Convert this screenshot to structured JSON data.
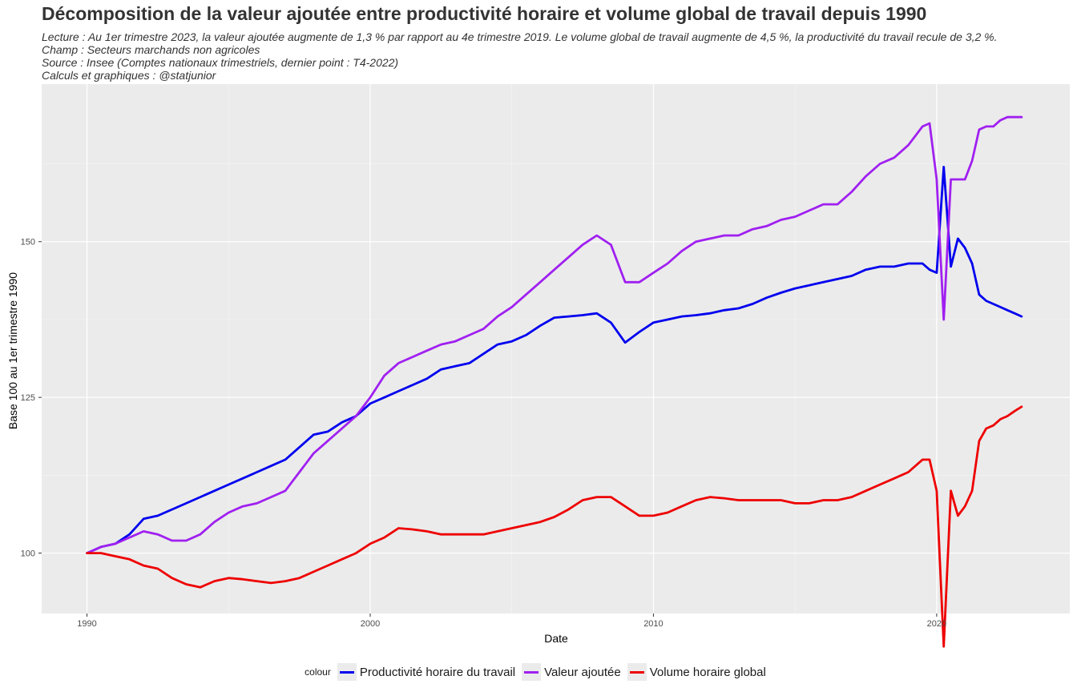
{
  "title": "Décomposition de la valeur ajoutée entre productivité horaire et volume global de travail depuis 1990",
  "subtitle_lines": [
    "Lecture : Au 1er trimestre 2023, la valeur ajoutée augmente de 1,3 % par rapport au 4e trimestre 2019. Le volume global de travail augmente de 4,5 %, la productivité du travail recule de 3,2 %.",
    "Champ : Secteurs marchands non agricoles",
    "Source : Insee (Comptes nationaux trimestriels, dernier point : T4-2022)",
    "Calculs et graphiques : @statjunior"
  ],
  "legend": {
    "title": "colour"
  },
  "colors": {
    "panel": "#ebebeb",
    "grid_major": "#ffffff",
    "grid_minor": "#f5f5f5"
  },
  "chart_data": {
    "type": "line",
    "xlabel": "Date",
    "ylabel": "Base 100 au 1er trimestre 1990",
    "xlim": [
      1988.4,
      2024.7
    ],
    "ylim": [
      90.3,
      175.3
    ],
    "x_ticks": [
      1990,
      2000,
      2010,
      2020
    ],
    "y_ticks": [
      100,
      125,
      150
    ],
    "grid": true,
    "legend_position": "bottom",
    "series": [
      {
        "name": "Productivité horaire du travail",
        "color": "#0000ee",
        "points": [
          [
            1990,
            100
          ],
          [
            1990.5,
            101
          ],
          [
            1991,
            101.5
          ],
          [
            1991.5,
            103
          ],
          [
            1992,
            105.5
          ],
          [
            1992.5,
            106
          ],
          [
            1993,
            107
          ],
          [
            1993.5,
            108
          ],
          [
            1994,
            109
          ],
          [
            1994.5,
            110
          ],
          [
            1995,
            111
          ],
          [
            1995.5,
            112
          ],
          [
            1996,
            113
          ],
          [
            1996.5,
            114
          ],
          [
            1997,
            115
          ],
          [
            1997.5,
            117
          ],
          [
            1998,
            119
          ],
          [
            1998.5,
            119.5
          ],
          [
            1999,
            121
          ],
          [
            1999.5,
            122
          ],
          [
            2000,
            124
          ],
          [
            2000.5,
            125
          ],
          [
            2001,
            126
          ],
          [
            2001.5,
            127
          ],
          [
            2002,
            128
          ],
          [
            2002.5,
            129.5
          ],
          [
            2003,
            130
          ],
          [
            2003.5,
            130.5
          ],
          [
            2004,
            132
          ],
          [
            2004.5,
            133.5
          ],
          [
            2005,
            134
          ],
          [
            2005.5,
            135
          ],
          [
            2006,
            136.5
          ],
          [
            2006.5,
            137.8
          ],
          [
            2007,
            138
          ],
          [
            2007.5,
            138.2
          ],
          [
            2008,
            138.5
          ],
          [
            2008.5,
            137
          ],
          [
            2009,
            133.8
          ],
          [
            2009.5,
            135.5
          ],
          [
            2010,
            137
          ],
          [
            2010.5,
            137.5
          ],
          [
            2011,
            138
          ],
          [
            2011.5,
            138.2
          ],
          [
            2012,
            138.5
          ],
          [
            2012.5,
            139
          ],
          [
            2013,
            139.3
          ],
          [
            2013.5,
            140
          ],
          [
            2014,
            141
          ],
          [
            2014.5,
            141.8
          ],
          [
            2015,
            142.5
          ],
          [
            2015.5,
            143
          ],
          [
            2016,
            143.5
          ],
          [
            2016.5,
            144
          ],
          [
            2017,
            144.5
          ],
          [
            2017.5,
            145.5
          ],
          [
            2018,
            146
          ],
          [
            2018.5,
            146
          ],
          [
            2019,
            146.5
          ],
          [
            2019.5,
            146.5
          ],
          [
            2019.75,
            145.5
          ],
          [
            2020,
            145
          ],
          [
            2020.25,
            162
          ],
          [
            2020.5,
            146
          ],
          [
            2020.75,
            150.5
          ],
          [
            2021,
            149
          ],
          [
            2021.25,
            146.5
          ],
          [
            2021.5,
            141.5
          ],
          [
            2021.75,
            140.5
          ],
          [
            2022,
            140
          ],
          [
            2022.25,
            139.5
          ],
          [
            2022.5,
            139
          ],
          [
            2022.75,
            138.5
          ],
          [
            2023,
            138
          ]
        ]
      },
      {
        "name": "Valeur ajoutée",
        "color": "#a020f0",
        "points": [
          [
            1990,
            100
          ],
          [
            1990.5,
            101
          ],
          [
            1991,
            101.5
          ],
          [
            1991.5,
            102.5
          ],
          [
            1992,
            103.5
          ],
          [
            1992.5,
            103
          ],
          [
            1993,
            102
          ],
          [
            1993.5,
            102
          ],
          [
            1994,
            103
          ],
          [
            1994.5,
            105
          ],
          [
            1995,
            106.5
          ],
          [
            1995.5,
            107.5
          ],
          [
            1996,
            108
          ],
          [
            1996.5,
            109
          ],
          [
            1997,
            110
          ],
          [
            1997.5,
            113
          ],
          [
            1998,
            116
          ],
          [
            1998.5,
            118
          ],
          [
            1999,
            120
          ],
          [
            1999.5,
            122
          ],
          [
            2000,
            125
          ],
          [
            2000.5,
            128.5
          ],
          [
            2001,
            130.5
          ],
          [
            2001.5,
            131.5
          ],
          [
            2002,
            132.5
          ],
          [
            2002.5,
            133.5
          ],
          [
            2003,
            134
          ],
          [
            2003.5,
            135
          ],
          [
            2004,
            136
          ],
          [
            2004.5,
            138
          ],
          [
            2005,
            139.5
          ],
          [
            2005.5,
            141.5
          ],
          [
            2006,
            143.5
          ],
          [
            2006.5,
            145.5
          ],
          [
            2007,
            147.5
          ],
          [
            2007.5,
            149.5
          ],
          [
            2008,
            151
          ],
          [
            2008.5,
            149.5
          ],
          [
            2009,
            143.5
          ],
          [
            2009.5,
            143.5
          ],
          [
            2010,
            145
          ],
          [
            2010.5,
            146.5
          ],
          [
            2011,
            148.5
          ],
          [
            2011.5,
            150
          ],
          [
            2012,
            150.5
          ],
          [
            2012.5,
            151
          ],
          [
            2013,
            151
          ],
          [
            2013.5,
            152
          ],
          [
            2014,
            152.5
          ],
          [
            2014.5,
            153.5
          ],
          [
            2015,
            154
          ],
          [
            2015.5,
            155
          ],
          [
            2016,
            156
          ],
          [
            2016.5,
            156
          ],
          [
            2017,
            158
          ],
          [
            2017.5,
            160.5
          ],
          [
            2018,
            162.5
          ],
          [
            2018.5,
            163.5
          ],
          [
            2019,
            165.5
          ],
          [
            2019.5,
            168.5
          ],
          [
            2019.75,
            169
          ],
          [
            2020,
            160
          ],
          [
            2020.25,
            137.5
          ],
          [
            2020.5,
            160
          ],
          [
            2020.75,
            160
          ],
          [
            2021,
            160
          ],
          [
            2021.25,
            163
          ],
          [
            2021.5,
            168
          ],
          [
            2021.75,
            168.5
          ],
          [
            2022,
            168.5
          ],
          [
            2022.25,
            169.5
          ],
          [
            2022.5,
            170
          ],
          [
            2022.75,
            170
          ],
          [
            2023,
            170
          ]
        ]
      },
      {
        "name": "Volume horaire global",
        "color": "#ee0000",
        "points": [
          [
            1990,
            100
          ],
          [
            1990.5,
            100
          ],
          [
            1991,
            99.5
          ],
          [
            1991.5,
            99
          ],
          [
            1992,
            98
          ],
          [
            1992.5,
            97.5
          ],
          [
            1993,
            96
          ],
          [
            1993.5,
            95
          ],
          [
            1994,
            94.5
          ],
          [
            1994.5,
            95.5
          ],
          [
            1995,
            96
          ],
          [
            1995.5,
            95.8
          ],
          [
            1996,
            95.5
          ],
          [
            1996.5,
            95.2
          ],
          [
            1997,
            95.5
          ],
          [
            1997.5,
            96
          ],
          [
            1998,
            97
          ],
          [
            1998.5,
            98
          ],
          [
            1999,
            99
          ],
          [
            1999.5,
            100
          ],
          [
            2000,
            101.5
          ],
          [
            2000.5,
            102.5
          ],
          [
            2001,
            104
          ],
          [
            2001.5,
            103.8
          ],
          [
            2002,
            103.5
          ],
          [
            2002.5,
            103
          ],
          [
            2003,
            103
          ],
          [
            2003.5,
            103
          ],
          [
            2004,
            103
          ],
          [
            2004.5,
            103.5
          ],
          [
            2005,
            104
          ],
          [
            2005.5,
            104.5
          ],
          [
            2006,
            105
          ],
          [
            2006.5,
            105.8
          ],
          [
            2007,
            107
          ],
          [
            2007.5,
            108.5
          ],
          [
            2008,
            109
          ],
          [
            2008.5,
            109
          ],
          [
            2009,
            107.5
          ],
          [
            2009.5,
            106
          ],
          [
            2010,
            106
          ],
          [
            2010.5,
            106.5
          ],
          [
            2011,
            107.5
          ],
          [
            2011.5,
            108.5
          ],
          [
            2012,
            109
          ],
          [
            2012.5,
            108.8
          ],
          [
            2013,
            108.5
          ],
          [
            2013.5,
            108.5
          ],
          [
            2014,
            108.5
          ],
          [
            2014.5,
            108.5
          ],
          [
            2015,
            108
          ],
          [
            2015.5,
            108
          ],
          [
            2016,
            108.5
          ],
          [
            2016.5,
            108.5
          ],
          [
            2017,
            109
          ],
          [
            2017.5,
            110
          ],
          [
            2018,
            111
          ],
          [
            2018.5,
            112
          ],
          [
            2019,
            113
          ],
          [
            2019.5,
            115
          ],
          [
            2019.75,
            115
          ],
          [
            2020,
            110
          ],
          [
            2020.25,
            85
          ],
          [
            2020.5,
            110
          ],
          [
            2020.75,
            106
          ],
          [
            2021,
            107.5
          ],
          [
            2021.25,
            110
          ],
          [
            2021.5,
            118
          ],
          [
            2021.75,
            120
          ],
          [
            2022,
            120.5
          ],
          [
            2022.25,
            121.5
          ],
          [
            2022.5,
            122
          ],
          [
            2022.75,
            122.8
          ],
          [
            2023,
            123.5
          ]
        ]
      }
    ]
  }
}
